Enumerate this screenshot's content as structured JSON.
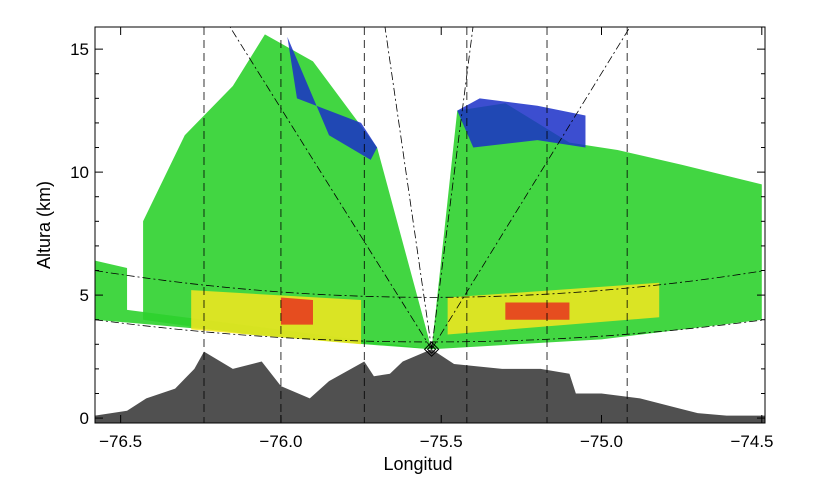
{
  "chart_data": {
    "type": "area",
    "title": "",
    "xlabel": "Longitud",
    "ylabel": "Altura (km)",
    "xlim": [
      -76.58,
      -74.49
    ],
    "ylim": [
      -0.2,
      15.9
    ],
    "xticks": [
      "-76.5",
      "-76.0",
      "-75.5",
      "-75.0",
      "-74.5"
    ],
    "xtick_values": [
      -76.5,
      -76.0,
      -75.5,
      -75.0,
      -74.5
    ],
    "yticks": [
      "0",
      "5",
      "10",
      "15"
    ],
    "ytick_values": [
      0,
      5,
      10,
      15
    ],
    "radar_location": {
      "lon": -75.53,
      "alt": 2.8
    },
    "dashed_longitudes": [
      -76.24,
      -76.0,
      -75.74,
      -75.42,
      -75.17,
      -74.92
    ],
    "terrain": {
      "color": "#505050",
      "lon": [
        -76.58,
        -76.48,
        -76.42,
        -76.33,
        -76.27,
        -76.24,
        -76.15,
        -76.06,
        -76.0,
        -75.91,
        -75.85,
        -75.74,
        -75.71,
        -75.66,
        -75.62,
        -75.53,
        -75.46,
        -75.31,
        -75.19,
        -75.1,
        -75.08,
        -75.0,
        -74.88,
        -74.76,
        -74.7,
        -74.61,
        -74.49
      ],
      "alt": [
        0.1,
        0.3,
        0.8,
        1.2,
        2.0,
        2.7,
        2.0,
        2.3,
        1.3,
        0.8,
        1.5,
        2.3,
        1.7,
        1.8,
        2.3,
        2.8,
        2.2,
        2.0,
        2.0,
        1.8,
        1.0,
        1.0,
        0.8,
        0.4,
        0.2,
        0.1,
        0.1
      ]
    },
    "echo_colors": {
      "weak": "#1a2fc8",
      "light": "#1ad0c8",
      "moderate": "#2ed12e",
      "strong": "#f5e61e",
      "heavy": "#e8321e"
    },
    "echo_regions": [
      {
        "level": "moderate",
        "lon": [
          -76.58,
          -76.58,
          -76.48,
          -76.48,
          -75.53
        ],
        "alt": [
          4.0,
          6.4,
          6.1,
          4.4,
          2.8
        ]
      },
      {
        "level": "moderate",
        "lon": [
          -76.43,
          -76.3,
          -76.15,
          -76.05,
          -75.9,
          -75.78,
          -75.7,
          -75.53,
          -75.74,
          -76.1,
          -76.43
        ],
        "alt": [
          8.0,
          11.5,
          13.5,
          15.6,
          14.5,
          12.4,
          11.0,
          2.8,
          3.0,
          3.4,
          4.0
        ]
      },
      {
        "level": "weak",
        "lon": [
          -75.98,
          -75.95,
          -75.85,
          -75.75,
          -75.7,
          -75.72,
          -75.85
        ],
        "alt": [
          15.5,
          13.0,
          12.5,
          12.0,
          11.0,
          10.5,
          11.5
        ]
      },
      {
        "level": "moderate",
        "lon": [
          -75.53,
          -75.45,
          -75.3,
          -75.1,
          -74.95,
          -74.75,
          -74.5,
          -74.5,
          -75.0,
          -75.53
        ],
        "alt": [
          2.8,
          12.5,
          12.8,
          11.2,
          10.9,
          10.3,
          9.5,
          4.0,
          3.2,
          2.8
        ]
      },
      {
        "level": "weak",
        "lon": [
          -75.45,
          -75.38,
          -75.2,
          -75.05,
          -75.05,
          -75.2,
          -75.4
        ],
        "alt": [
          12.5,
          13.0,
          12.7,
          12.3,
          11.0,
          11.3,
          11.0
        ]
      },
      {
        "level": "strong",
        "lon": [
          -76.28,
          -76.28,
          -75.75,
          -75.75
        ],
        "alt": [
          3.6,
          5.2,
          4.8,
          3.0
        ]
      },
      {
        "level": "strong",
        "lon": [
          -75.48,
          -75.48,
          -74.82,
          -74.82
        ],
        "alt": [
          3.4,
          4.9,
          5.5,
          4.1
        ]
      },
      {
        "level": "heavy",
        "lon": [
          -76.0,
          -76.0,
          -75.9,
          -75.9
        ],
        "alt": [
          3.8,
          4.9,
          4.8,
          3.8
        ]
      },
      {
        "level": "heavy",
        "lon": [
          -75.3,
          -75.3,
          -75.1,
          -75.1
        ],
        "alt": [
          4.0,
          4.7,
          4.7,
          4.0
        ]
      }
    ]
  }
}
